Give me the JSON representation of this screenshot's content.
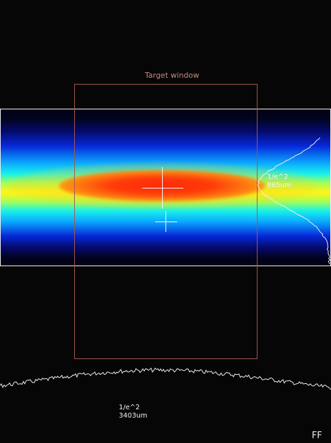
{
  "target_window": {
    "label": "Target window"
  },
  "vertical_width": {
    "line1": "1/e^2",
    "line2": "865um"
  },
  "horizontal_width": {
    "line1": "1/e^2",
    "line2": "3403um"
  },
  "corner_label": "FF",
  "colors": {
    "background": "#060606",
    "panel_border": "#f2f2f2",
    "target_window_border": "#a05a50",
    "target_label": "#c98b80",
    "crosshair": "#f4f4f4",
    "profile_line": "#f0f0f0"
  }
}
